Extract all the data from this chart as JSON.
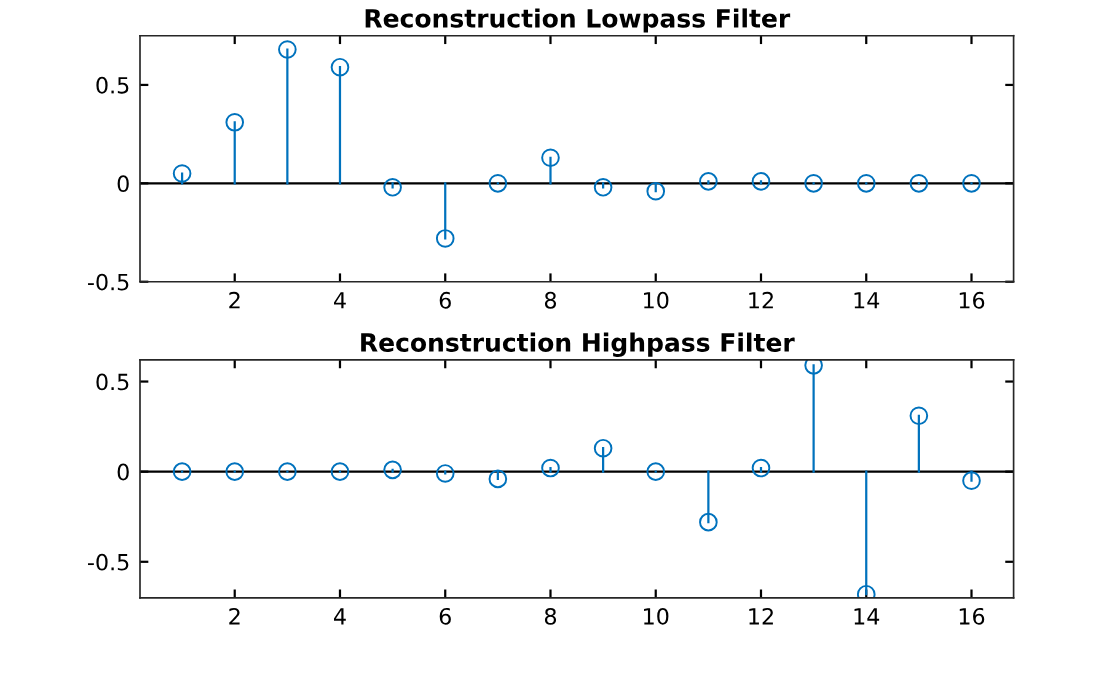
{
  "chart_data": [
    {
      "type": "lollipop",
      "title": "Reconstruction Lowpass Filter",
      "x": [
        1,
        2,
        3,
        4,
        5,
        6,
        7,
        8,
        9,
        10,
        11,
        12,
        13,
        14,
        15,
        16
      ],
      "series": [
        {
          "color": "#0072bd",
          "values": [
            0.05,
            0.31,
            0.68,
            0.59,
            -0.02,
            -0.28,
            0.0,
            0.13,
            -0.02,
            -0.04,
            0.01,
            0.01,
            0.0,
            0.0,
            0.0,
            0.0
          ]
        }
      ],
      "xlim": [
        0.2,
        16.8
      ],
      "xticks": [
        2,
        4,
        6,
        8,
        10,
        12,
        14,
        16
      ],
      "ylim": [
        -0.5,
        0.75
      ],
      "yticks": [
        -0.5,
        0,
        0.5
      ],
      "marker": "circle",
      "grid": false,
      "ref_lines": [
        {
          "axis": "y",
          "value": 0,
          "color": "#000000"
        }
      ]
    },
    {
      "type": "lollipop",
      "title": "Reconstruction Highpass Filter",
      "x": [
        1,
        2,
        3,
        4,
        5,
        6,
        7,
        8,
        9,
        10,
        11,
        12,
        13,
        14,
        15,
        16
      ],
      "series": [
        {
          "color": "#0072bd",
          "values": [
            0.0,
            0.0,
            0.0,
            0.0,
            0.01,
            -0.01,
            -0.04,
            0.02,
            0.13,
            0.0,
            -0.28,
            0.02,
            0.59,
            -0.68,
            0.31,
            -0.05
          ]
        }
      ],
      "xlim": [
        0.2,
        16.8
      ],
      "xticks": [
        2,
        4,
        6,
        8,
        10,
        12,
        14,
        16
      ],
      "ylim": [
        -0.7,
        0.62
      ],
      "yticks": [
        -0.5,
        0,
        0.5
      ],
      "marker": "circle",
      "grid": false,
      "ref_lines": [
        {
          "axis": "y",
          "value": 0,
          "color": "#000000"
        }
      ]
    }
  ]
}
